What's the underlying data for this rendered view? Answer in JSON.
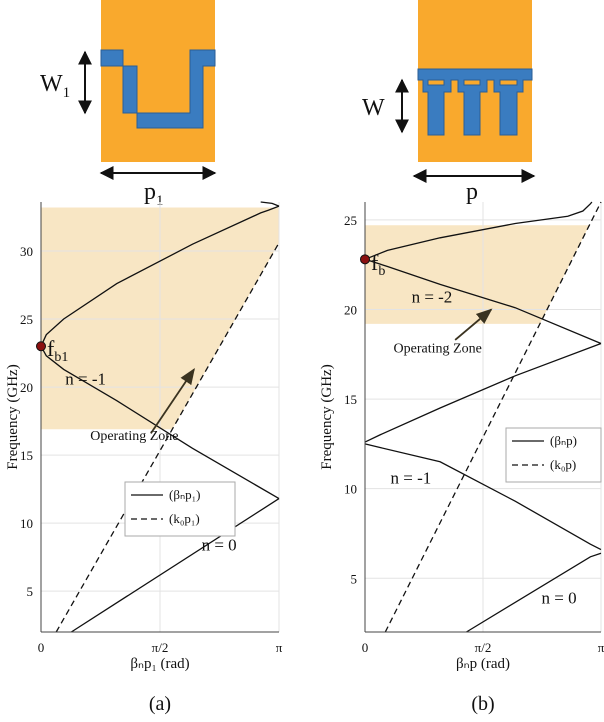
{
  "chart_data": [
    {
      "type": "line",
      "panel_label": "(a)",
      "xlabel": "βₙp₁ (rad)",
      "ylabel": "Frequency (GHz)",
      "xlim": [
        0,
        3.1416
      ],
      "ylim": [
        2,
        33.6
      ],
      "x_ticks": [
        {
          "v": 0,
          "t": "0"
        },
        {
          "v": 1.5708,
          "t": "π/2"
        },
        {
          "v": 3.1416,
          "t": "π"
        }
      ],
      "y_ticks": [
        5,
        10,
        15,
        20,
        25,
        30
      ],
      "grid": true,
      "legend": {
        "placement": "center-right",
        "entries": [
          "(βₙp₁)",
          "(k₀p₁)"
        ]
      },
      "shaded_zone": {
        "label": "Operating Zone",
        "f_min": 16.9,
        "f_max": 33.2,
        "color": "#f8e6c4"
      },
      "series": [
        {
          "name": "(βₙp₁)",
          "style": "solid",
          "points": [
            [
              0.4,
              2
            ],
            [
              3.1416,
              11.8
            ]
          ]
        },
        {
          "name": "(βₙp₁)",
          "style": "solid",
          "points": [
            [
              0,
              23.0
            ],
            [
              0.07,
              23.85
            ],
            [
              0.3,
              25.0
            ],
            [
              1.0,
              27.6
            ],
            [
              2.0,
              30.5
            ],
            [
              2.9,
              32.8
            ],
            [
              3.0,
              33.0
            ],
            [
              3.1,
              33.2
            ],
            [
              3.1416,
              33.3
            ]
          ]
        },
        {
          "name": "(βₙp₁)",
          "style": "solid",
          "points": [
            [
              0,
              23.0
            ],
            [
              0.07,
              22.3
            ],
            [
              0.3,
              21.3
            ],
            [
              1.0,
              19.0
            ],
            [
              2.0,
              15.5
            ],
            [
              3.1416,
              11.8
            ]
          ]
        },
        {
          "name": "(βₙp₁)",
          "style": "solid",
          "points": [
            [
              2.9,
              33.6
            ],
            [
              3.05,
              33.5
            ],
            [
              3.1416,
              33.3
            ]
          ]
        },
        {
          "name": "(k₀p₁)",
          "style": "dashed",
          "points": [
            [
              0.2,
              2
            ],
            [
              3.1416,
              30.6
            ]
          ]
        }
      ],
      "annotations": [
        {
          "text": "f",
          "sub": "b1",
          "x": 0.08,
          "y": 22.3
        },
        {
          "text": "n = -1",
          "x": 0.32,
          "y": 20.2
        },
        {
          "text": "n = 0",
          "x": 2.12,
          "y": 8.0
        },
        {
          "text": "Operating Zone",
          "x": 0.65,
          "y": 16.1
        }
      ],
      "arrow": {
        "from": [
          1.45,
          16.6
        ],
        "to": [
          2.02,
          21.3
        ]
      },
      "marker": {
        "x": 0,
        "y": 23.0,
        "color": "#8b1010"
      }
    },
    {
      "type": "line",
      "panel_label": "(b)",
      "xlabel": "βₙp (rad)",
      "ylabel": "Frequency (GHz)",
      "xlim": [
        0,
        3.1416
      ],
      "ylim": [
        2,
        26
      ],
      "x_ticks": [
        {
          "v": 0,
          "t": "0"
        },
        {
          "v": 1.5708,
          "t": "π/2"
        },
        {
          "v": 3.1416,
          "t": "π"
        }
      ],
      "y_ticks": [
        5,
        10,
        15,
        20,
        25
      ],
      "grid": true,
      "legend": {
        "placement": "center-right",
        "entries": [
          "(βₙp)",
          "(k₀p)"
        ]
      },
      "shaded_zone": {
        "label": "Operating Zone",
        "f_min": 19.2,
        "f_max": 24.7,
        "color": "#f8e6c4"
      },
      "series": [
        {
          "name": "(βₙp)",
          "style": "solid",
          "points": [
            [
              1.35,
              2
            ],
            [
              3.0,
              6.2
            ],
            [
              3.1416,
              6.4
            ]
          ]
        },
        {
          "name": "(βₙp)",
          "style": "solid",
          "points": [
            [
              3.1416,
              6.6
            ],
            [
              3.0,
              6.9
            ],
            [
              2.0,
              9.3
            ],
            [
              1.0,
              11.5
            ],
            [
              0.2,
              12.3
            ],
            [
              0,
              12.5
            ]
          ]
        },
        {
          "name": "(βₙp)",
          "style": "solid",
          "points": [
            [
              0,
              12.6
            ],
            [
              0.2,
              13.0
            ],
            [
              1.0,
              14.5
            ],
            [
              2.0,
              16.3
            ],
            [
              3.1416,
              18.1
            ]
          ]
        },
        {
          "name": "(βₙp)",
          "style": "solid",
          "points": [
            [
              3.1416,
              18.1
            ],
            [
              2.0,
              20.1
            ],
            [
              1.0,
              21.4
            ],
            [
              0.3,
              22.4
            ],
            [
              0,
              22.8
            ]
          ]
        },
        {
          "name": "(βₙp)",
          "style": "solid",
          "points": [
            [
              0,
              22.8
            ],
            [
              0.3,
              23.3
            ],
            [
              1.0,
              24.0
            ],
            [
              2.0,
              24.8
            ],
            [
              2.7,
              25.2
            ],
            [
              2.9,
              25.5
            ],
            [
              3.0,
              25.9
            ],
            [
              3.02,
              26.0
            ]
          ]
        },
        {
          "name": "(k₀p)",
          "style": "dashed",
          "points": [
            [
              0.27,
              2
            ],
            [
              3.1416,
              26.0
            ]
          ]
        }
      ],
      "annotations": [
        {
          "text": "f",
          "sub": "b",
          "x": 0.08,
          "y": 22.2
        },
        {
          "text": "n = -2",
          "x": 0.62,
          "y": 20.4
        },
        {
          "text": "n = -1",
          "x": 0.34,
          "y": 10.3
        },
        {
          "text": "n = 0",
          "x": 2.35,
          "y": 3.6
        },
        {
          "text": "Operating Zone",
          "x": 0.38,
          "y": 17.6
        }
      ],
      "arrow": {
        "from": [
          1.2,
          18.3
        ],
        "to": [
          1.68,
          20.0
        ]
      },
      "marker": {
        "x": 0,
        "y": 22.8,
        "color": "#8b1010"
      }
    }
  ],
  "unit_cells": [
    {
      "dim_label_main": "W",
      "dim_label_sub": "1",
      "period_label_main": "p",
      "period_label_sub": "1",
      "colors": {
        "substrate": "#f9a92d",
        "strip": "#3a7cc0"
      }
    },
    {
      "dim_label_main": "W",
      "dim_label_sub": "",
      "period_label_main": "p",
      "period_label_sub": "",
      "colors": {
        "substrate": "#f9a92d",
        "strip": "#3a7cc0"
      }
    }
  ]
}
